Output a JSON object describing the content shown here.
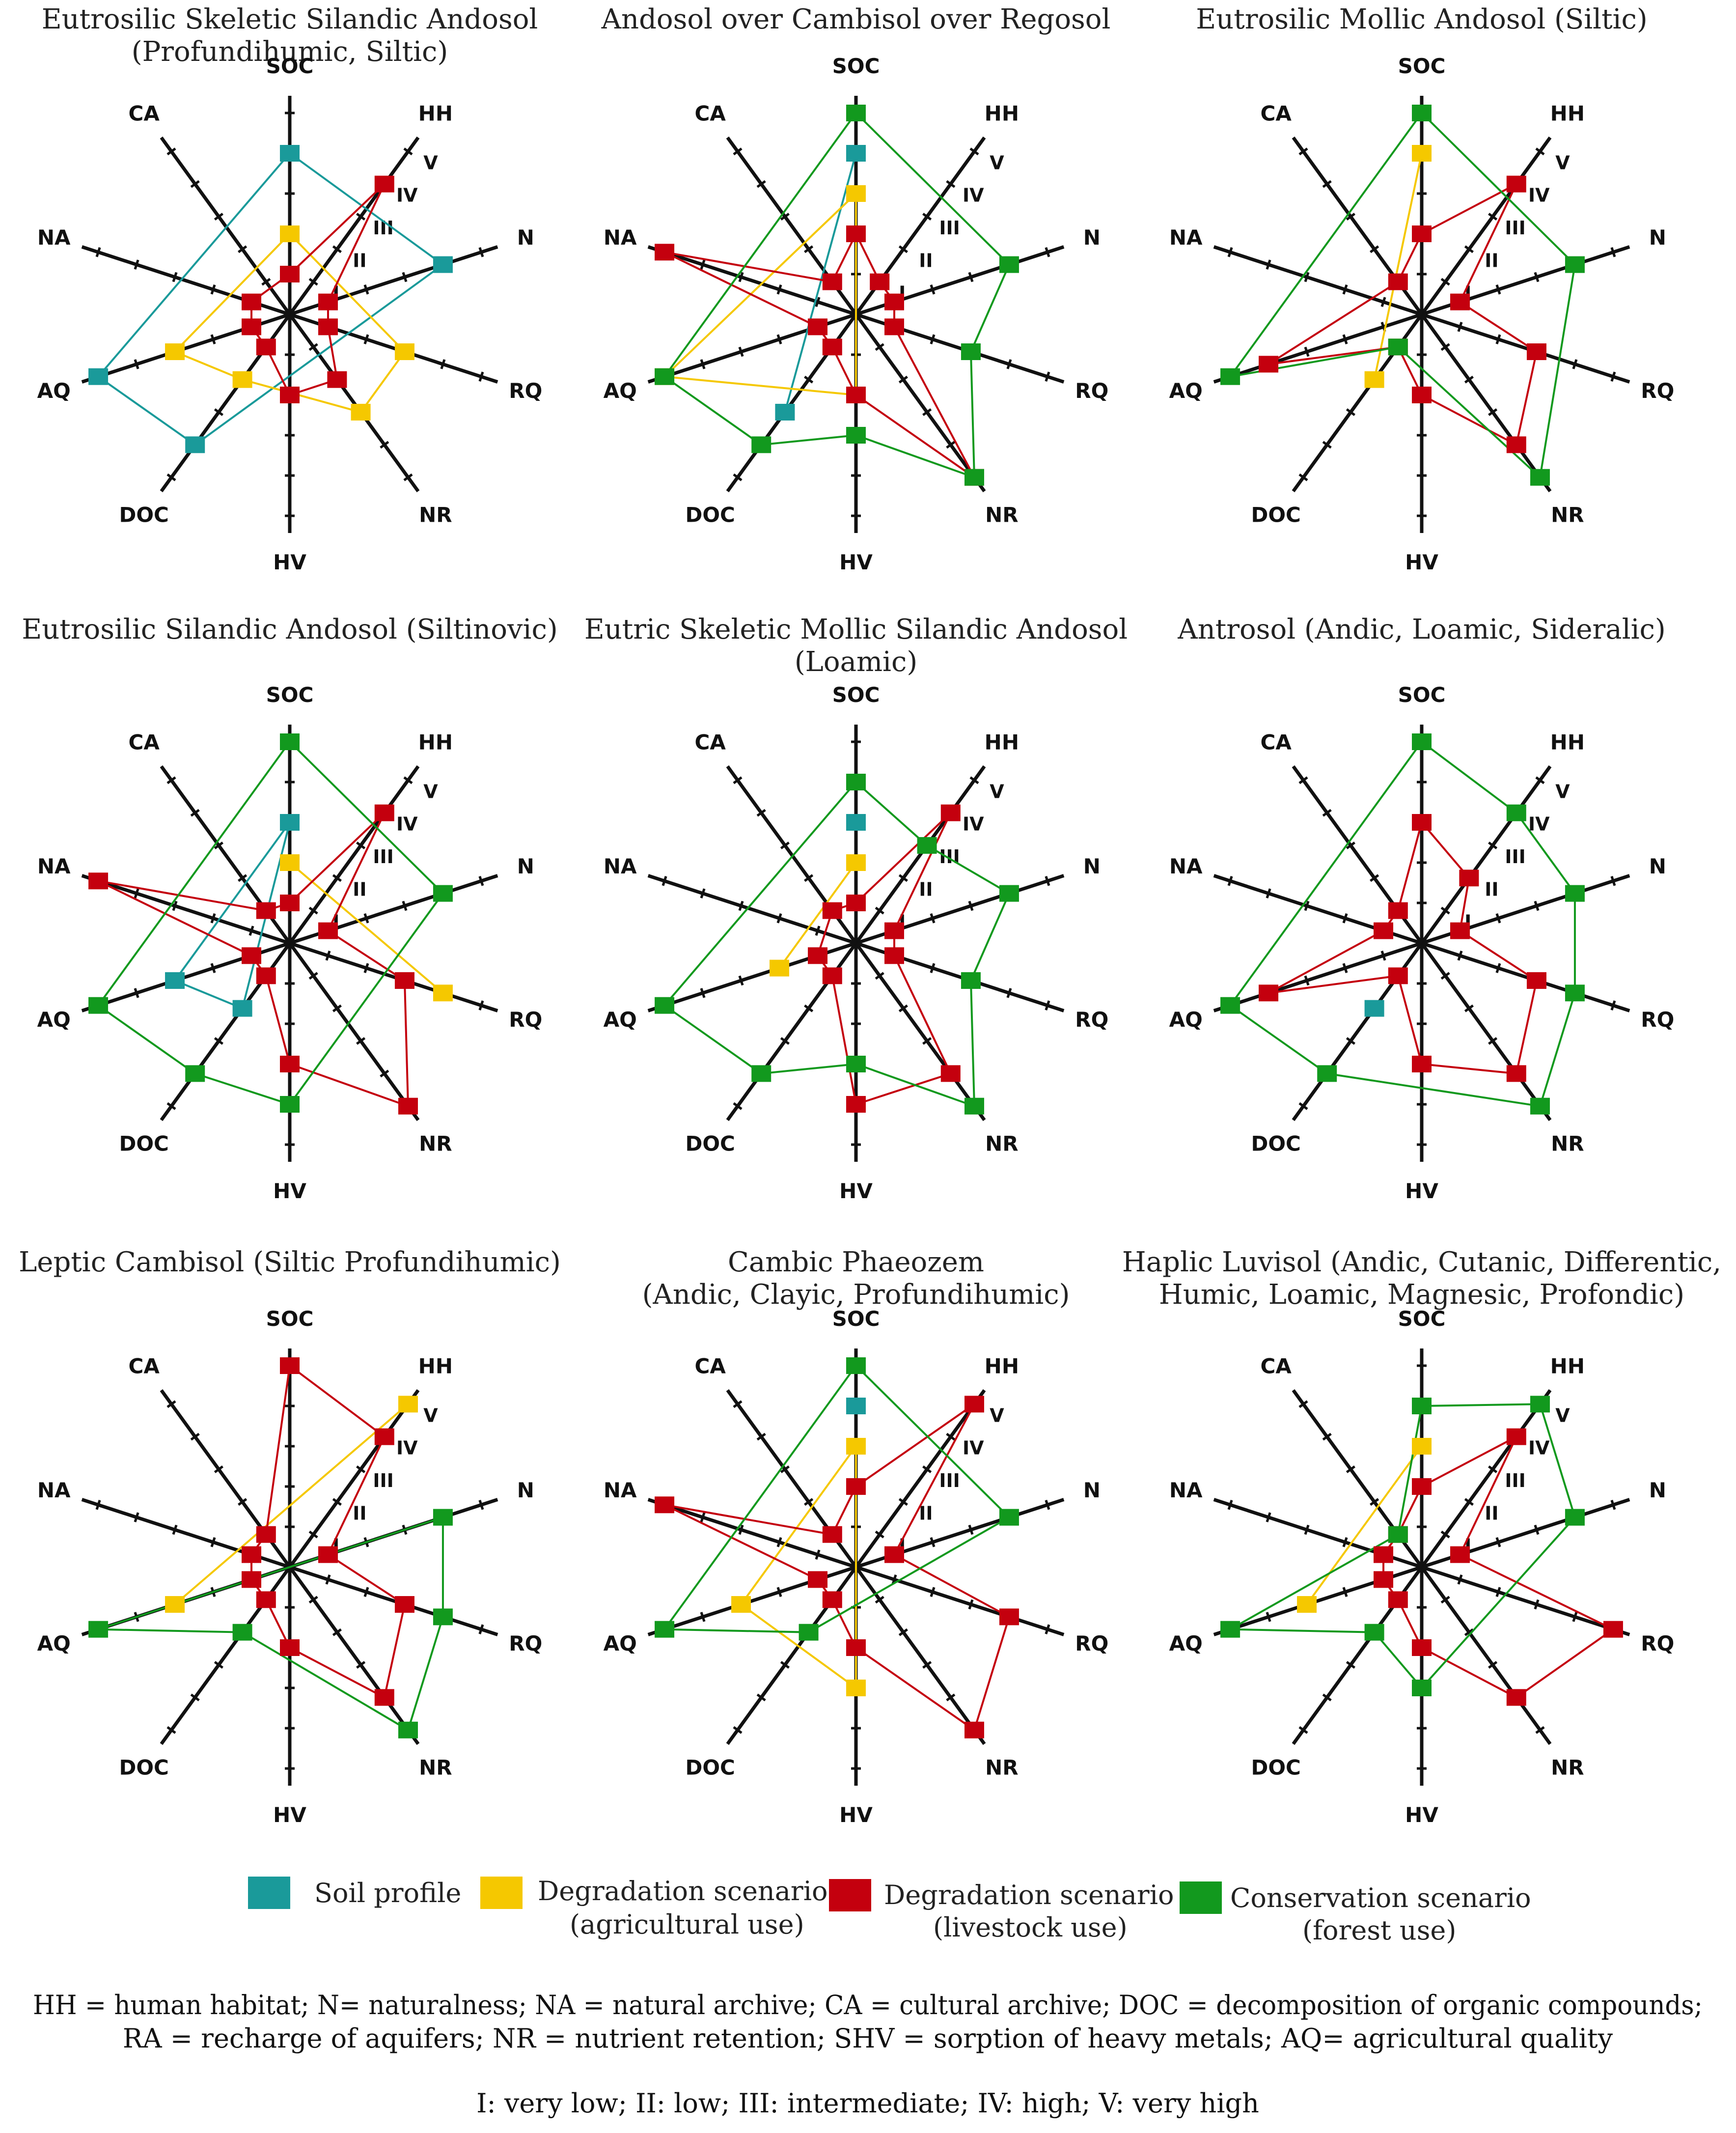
{
  "axes": [
    "SOC",
    "HH",
    "N",
    "RQ",
    "NR",
    "HV",
    "DOC",
    "AQ",
    "NA",
    "CA"
  ],
  "levels": [
    "I",
    "II",
    "III",
    "IV",
    "V"
  ],
  "series_defs": [
    {
      "key": "soil_profile",
      "label": "Soil profile",
      "sublabel": "",
      "color": "#1a9a9a"
    },
    {
      "key": "agri",
      "label": "Degradation scenario",
      "sublabel": "(agricultural use)",
      "color": "#f5c800"
    },
    {
      "key": "livestock",
      "label": "Degradation scenario",
      "sublabel": "(livestock use)",
      "color": "#c4000e"
    },
    {
      "key": "forest",
      "label": "Conservation scenario",
      "sublabel": "(forest use)",
      "color": "#12991e"
    }
  ],
  "chart_data": [
    {
      "type": "radar",
      "title": [
        "Eutrosilic Skeletic Silandic Andosol",
        "(Profundihumic, Siltic)"
      ],
      "show_levels": true,
      "range": [
        0,
        5
      ],
      "series": [
        {
          "key": "soil_profile",
          "values": {
            "SOC": 4,
            "N": 4,
            "AQ": 5,
            "DOC": 4
          }
        },
        {
          "key": "agri",
          "values": {
            "SOC": 2,
            "RQ": 3,
            "NR": 3,
            "DOC": 2,
            "AQ": 3
          }
        },
        {
          "key": "livestock",
          "values": {
            "SOC": 1,
            "HH": 4,
            "N": 1,
            "RQ": 1,
            "NR": 2,
            "HV": 2,
            "DOC": 1,
            "AQ": 1,
            "NA": 1
          }
        }
      ]
    },
    {
      "type": "radar",
      "title": [
        "Andosol over Cambisol over Regosol"
      ],
      "show_levels": true,
      "range": [
        0,
        5
      ],
      "series": [
        {
          "key": "soil_profile",
          "values": {
            "SOC": 4,
            "DOC": 3
          }
        },
        {
          "key": "agri",
          "values": {
            "SOC": 3,
            "HV": 2,
            "AQ": 5
          }
        },
        {
          "key": "livestock",
          "values": {
            "SOC": 2,
            "HH": 1,
            "N": 1,
            "RQ": 1,
            "NR": 5,
            "HV": 2,
            "DOC": 1,
            "AQ": 1,
            "NA": 5,
            "CA": 1
          }
        },
        {
          "key": "forest",
          "values": {
            "SOC": 5,
            "N": 4,
            "RQ": 3,
            "NR": 5,
            "HV": 3,
            "DOC": 4,
            "AQ": 5
          }
        }
      ]
    },
    {
      "type": "radar",
      "title": [
        "Eutrosilic Mollic Andosol (Siltic)"
      ],
      "show_levels": true,
      "range": [
        0,
        5
      ],
      "series": [
        {
          "key": "agri",
          "values": {
            "SOC": 4,
            "DOC": 2
          }
        },
        {
          "key": "livestock",
          "values": {
            "SOC": 2,
            "HH": 4,
            "N": 1,
            "RQ": 3,
            "NR": 4,
            "HV": 2,
            "DOC": 1,
            "AQ": 4,
            "CA": 1
          }
        },
        {
          "key": "forest",
          "values": {
            "SOC": 5,
            "N": 4,
            "NR": 5,
            "DOC": 1,
            "AQ": 5
          }
        }
      ]
    },
    {
      "type": "radar",
      "title": [
        "Eutrosilic Silandic Andosol (Siltinovic)"
      ],
      "show_levels": true,
      "range": [
        0,
        5
      ],
      "series": [
        {
          "key": "soil_profile",
          "values": {
            "SOC": 3,
            "AQ": 3,
            "DOC": 2
          }
        },
        {
          "key": "agri",
          "values": {
            "SOC": 2,
            "RQ": 4
          }
        },
        {
          "key": "livestock",
          "values": {
            "SOC": 1,
            "HH": 4,
            "N": 1,
            "RQ": 3,
            "NR": 5,
            "HV": 3,
            "DOC": 1,
            "AQ": 1,
            "NA": 5,
            "CA": 1
          }
        },
        {
          "key": "forest",
          "values": {
            "SOC": 5,
            "N": 4,
            "HV": 4,
            "DOC": 4,
            "AQ": 5
          }
        }
      ]
    },
    {
      "type": "radar",
      "title": [
        "Eutric Skeletic Mollic Silandic Andosol",
        "(Loamic)"
      ],
      "show_levels": true,
      "range": [
        0,
        5
      ],
      "series": [
        {
          "key": "soil_profile",
          "values": {
            "SOC": 3
          }
        },
        {
          "key": "agri",
          "values": {
            "SOC": 2,
            "AQ": 2
          }
        },
        {
          "key": "livestock",
          "values": {
            "SOC": 1,
            "HH": 4,
            "N": 1,
            "RQ": 1,
            "NR": 4,
            "HV": 4,
            "DOC": 1,
            "AQ": 1,
            "CA": 1
          }
        },
        {
          "key": "forest",
          "values": {
            "SOC": 4,
            "HH": 3,
            "N": 4,
            "RQ": 3,
            "NR": 5,
            "HV": 3,
            "DOC": 4,
            "AQ": 5
          }
        }
      ]
    },
    {
      "type": "radar",
      "title": [
        "Antrosol (Andic, Loamic, Sideralic)"
      ],
      "show_levels": true,
      "range": [
        0,
        5
      ],
      "series": [
        {
          "key": "soil_profile",
          "values": {
            "DOC": 2
          }
        },
        {
          "key": "livestock",
          "values": {
            "SOC": 3,
            "HH": 2,
            "N": 1,
            "RQ": 3,
            "NR": 4,
            "HV": 3,
            "DOC": 1,
            "AQ": 4,
            "NA": 1,
            "CA": 1
          }
        },
        {
          "key": "forest",
          "values": {
            "SOC": 5,
            "HH": 4,
            "N": 4,
            "RQ": 4,
            "NR": 5,
            "DOC": 4,
            "AQ": 5
          }
        }
      ]
    },
    {
      "type": "radar",
      "title": [
        "Leptic Cambisol (Siltic Profundihumic)"
      ],
      "show_levels": true,
      "range": [
        0,
        5
      ],
      "series": [
        {
          "key": "agri",
          "values": {
            "HH": 5,
            "AQ": 3
          }
        },
        {
          "key": "livestock",
          "values": {
            "SOC": 5,
            "HH": 4,
            "N": 1,
            "RQ": 3,
            "NR": 4,
            "HV": 2,
            "DOC": 1,
            "AQ": 1,
            "NA": 1,
            "CA": 1
          }
        },
        {
          "key": "forest",
          "values": {
            "N": 4,
            "RQ": 4,
            "NR": 5,
            "DOC": 2,
            "AQ": 5
          }
        }
      ]
    },
    {
      "type": "radar",
      "title": [
        "Cambic Phaeozem",
        "(Andic, Clayic, Profundihumic)"
      ],
      "show_levels": true,
      "range": [
        0,
        5
      ],
      "series": [
        {
          "key": "soil_profile",
          "values": {
            "SOC": 4
          }
        },
        {
          "key": "agri",
          "values": {
            "SOC": 3,
            "HV": 3,
            "AQ": 3
          }
        },
        {
          "key": "livestock",
          "values": {
            "SOC": 2,
            "HH": 5,
            "N": 1,
            "RQ": 4,
            "NR": 5,
            "HV": 2,
            "DOC": 1,
            "AQ": 1,
            "NA": 5,
            "CA": 1
          }
        },
        {
          "key": "forest",
          "values": {
            "SOC": 5,
            "N": 4,
            "DOC": 2,
            "AQ": 5
          }
        }
      ]
    },
    {
      "type": "radar",
      "title": [
        "Haplic Luvisol (Andic, Cutanic, Differentic,",
        "Humic, Loamic, Magnesic, Profondic)"
      ],
      "show_levels": true,
      "range": [
        0,
        5
      ],
      "series": [
        {
          "key": "agri",
          "values": {
            "SOC": 3,
            "AQ": 3
          }
        },
        {
          "key": "livestock",
          "values": {
            "SOC": 2,
            "HH": 4,
            "N": 1,
            "RQ": 5,
            "NR": 4,
            "HV": 2,
            "DOC": 1,
            "AQ": 1,
            "NA": 1,
            "CA": 1
          }
        },
        {
          "key": "forest",
          "values": {
            "SOC": 4,
            "HH": 5,
            "N": 4,
            "HV": 3,
            "DOC": 2,
            "AQ": 5,
            "CA": 1
          }
        }
      ]
    }
  ],
  "footnote": {
    "line1": "HH = human habitat; N= naturalness; NA = natural archive; CA = cultural archive; DOC = decomposition of organic compounds;",
    "line2": "RA = recharge of aquifers; NR = nutrient retention; SHV = sorption of heavy metals; AQ= agricultural quality",
    "line3": "I: very low; II: low; III: intermediate; IV: high; V: very high"
  }
}
